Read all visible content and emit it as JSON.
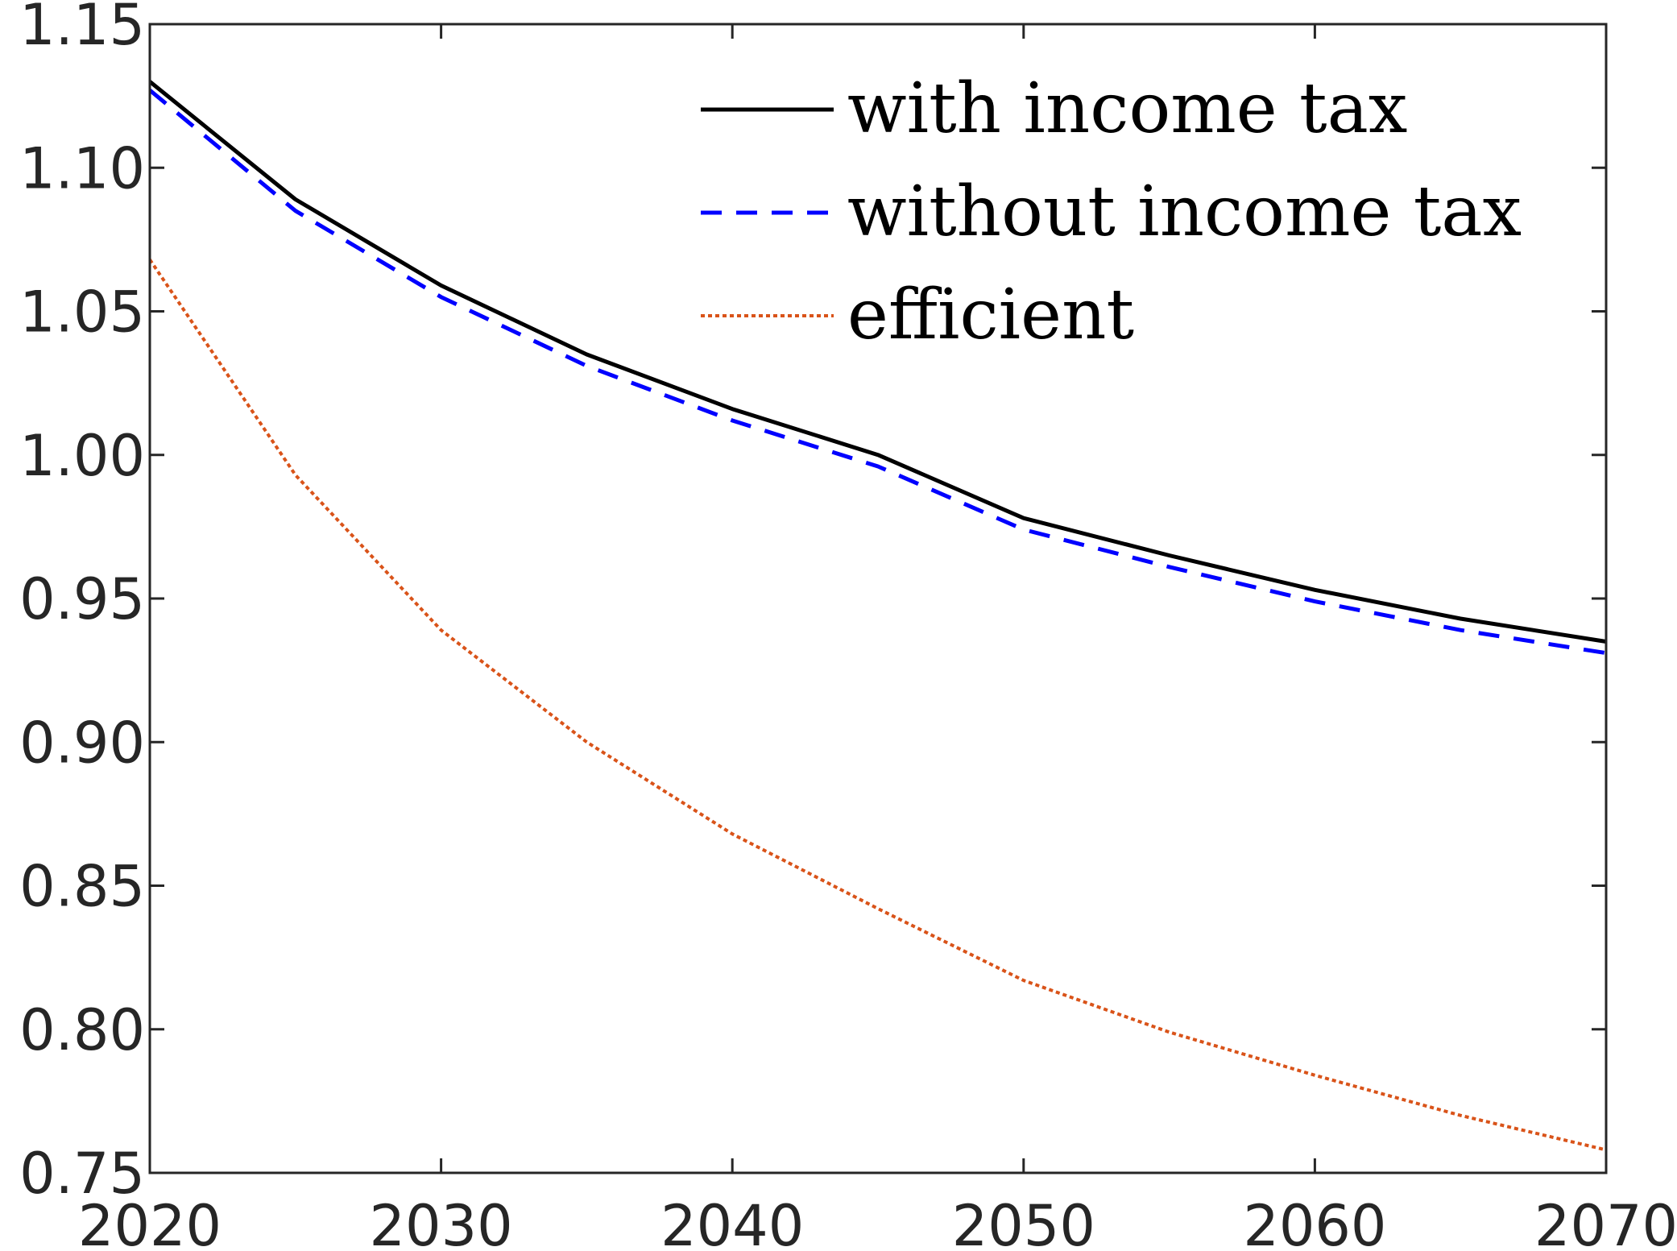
{
  "chart_data": {
    "type": "line",
    "title": "",
    "xlabel": "",
    "ylabel": "",
    "xlim": [
      2020,
      2070
    ],
    "ylim": [
      0.75,
      1.15
    ],
    "xticks": [
      2020,
      2030,
      2040,
      2050,
      2060,
      2070
    ],
    "yticks": [
      0.75,
      0.8,
      0.85,
      0.9,
      0.95,
      1.0,
      1.05,
      1.1,
      1.15
    ],
    "xtick_labels": [
      "2020",
      "2030",
      "2040",
      "2050",
      "2060",
      "2070"
    ],
    "ytick_labels": [
      "0.75",
      "0.80",
      "0.85",
      "0.90",
      "0.95",
      "1.00",
      "1.05",
      "1.10",
      "1.15"
    ],
    "grid": false,
    "legend_position": "top-right",
    "x": [
      2020,
      2025,
      2030,
      2035,
      2040,
      2045,
      2050,
      2055,
      2060,
      2065,
      2070
    ],
    "series": [
      {
        "name": "with income tax",
        "style": "solid",
        "color": "#000000",
        "values": [
          1.13,
          1.089,
          1.059,
          1.035,
          1.016,
          1.0,
          0.978,
          0.965,
          0.953,
          0.943,
          0.935
        ]
      },
      {
        "name": "without income tax",
        "style": "dashed",
        "color": "#0000ff",
        "values": [
          1.127,
          1.085,
          1.055,
          1.031,
          1.012,
          0.996,
          0.974,
          0.961,
          0.949,
          0.939,
          0.931
        ]
      },
      {
        "name": "efficient",
        "style": "dotted",
        "color": "#d95319",
        "values": [
          1.068,
          0.993,
          0.939,
          0.9,
          0.868,
          0.842,
          0.817,
          0.799,
          0.784,
          0.77,
          0.758
        ]
      }
    ]
  }
}
